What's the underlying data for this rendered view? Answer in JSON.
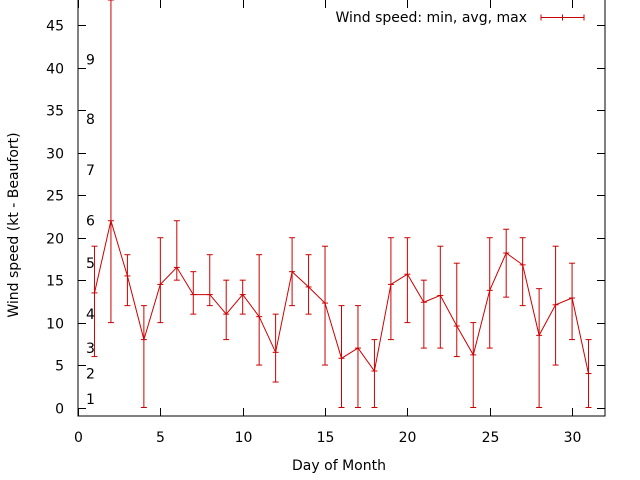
{
  "chart_data": {
    "type": "line",
    "title": "",
    "xlabel": "Day of Month",
    "ylabel": "Wind speed (kt - Beaufort)",
    "xlim": [
      0,
      32
    ],
    "ylim": [
      -1,
      48
    ],
    "xticks": [
      0,
      5,
      10,
      15,
      20,
      25,
      30
    ],
    "yticks": [
      0,
      5,
      10,
      15,
      20,
      25,
      30,
      35,
      40,
      45
    ],
    "beaufort_labels": [
      {
        "label": "1",
        "y": 1
      },
      {
        "label": "2",
        "y": 4
      },
      {
        "label": "3",
        "y": 7
      },
      {
        "label": "4",
        "y": 11
      },
      {
        "label": "5",
        "y": 17
      },
      {
        "label": "6",
        "y": 22
      },
      {
        "label": "7",
        "y": 28
      },
      {
        "label": "8",
        "y": 34
      },
      {
        "label": "9",
        "y": 41
      }
    ],
    "legend": {
      "label": "Wind speed: min, avg, max",
      "position": "top-right"
    },
    "color": "#cc0000",
    "series": [
      {
        "name": "Wind speed: min, avg, max",
        "x": [
          1,
          2,
          3,
          4,
          5,
          6,
          7,
          8,
          9,
          10,
          11,
          12,
          13,
          14,
          15,
          16,
          17,
          18,
          19,
          20,
          21,
          22,
          23,
          24,
          25,
          26,
          27,
          28,
          29,
          30,
          31
        ],
        "avg": [
          13.5,
          22,
          15.5,
          8,
          14.5,
          16.5,
          13.3,
          13.3,
          11,
          13.3,
          10.7,
          6.5,
          16,
          14.2,
          12.3,
          5.8,
          7,
          4.3,
          14.5,
          15.7,
          12.4,
          13.2,
          9.6,
          6.2,
          13.8,
          18.2,
          16.8,
          8.5,
          12.1,
          12.9,
          4
        ],
        "min": [
          6,
          10,
          12,
          0,
          10,
          15,
          11,
          12,
          8,
          11,
          5,
          3,
          12,
          11,
          5,
          0,
          0,
          0,
          8,
          10,
          7,
          7,
          6,
          0,
          7,
          13,
          12,
          0,
          5,
          8,
          0
        ],
        "max": [
          19,
          48,
          18,
          12,
          20,
          22,
          16,
          18,
          15,
          15,
          18,
          11,
          20,
          18,
          19,
          12,
          12,
          8,
          20,
          20,
          15,
          19,
          17,
          10,
          20,
          21,
          20,
          14,
          19,
          17,
          8
        ]
      }
    ]
  }
}
